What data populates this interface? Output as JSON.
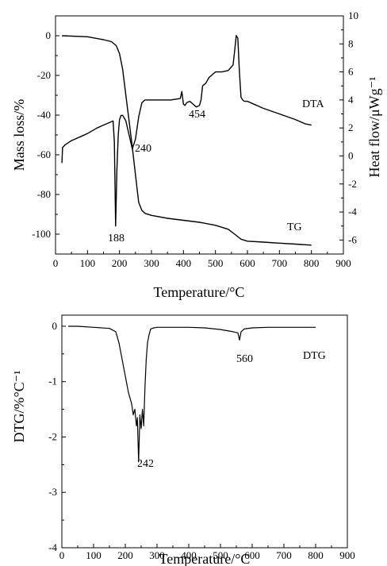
{
  "chart_data": [
    {
      "type": "line",
      "title": "",
      "xlabel": "Temperature/°C",
      "ylabel_left": "Mass loss/%",
      "ylabel_right": "Heat flow/μWg⁻¹",
      "xlim": [
        0,
        900
      ],
      "ylim_left": [
        -110,
        10
      ],
      "ylim_right": [
        -7,
        10
      ],
      "xticks": [
        "0",
        "100",
        "200",
        "300",
        "400",
        "500",
        "600",
        "700",
        "800",
        "900"
      ],
      "yticks_left": [
        "0",
        "-20",
        "-40",
        "-60",
        "-80",
        "-100"
      ],
      "yticks_right": [
        "10",
        "8",
        "6",
        "4",
        "2",
        "0",
        "-2",
        "-4",
        "-6"
      ],
      "grid": false,
      "series": [
        {
          "name": "TG",
          "axis": "left",
          "x": [
            20,
            100,
            150,
            175,
            190,
            200,
            210,
            220,
            230,
            240,
            250,
            260,
            270,
            280,
            300,
            350,
            400,
            450,
            500,
            540,
            560,
            580,
            600,
            650,
            700,
            750,
            800
          ],
          "y": [
            0,
            -0.5,
            -2,
            -3,
            -5,
            -9,
            -17,
            -30,
            -43,
            -56,
            -70,
            -84,
            -88,
            -89.5,
            -90.5,
            -92,
            -93,
            -94,
            -95.5,
            -97.5,
            -100,
            -102.5,
            -103.5,
            -104,
            -104.5,
            -105,
            -105.5
          ]
        },
        {
          "name": "DTA",
          "axis": "right",
          "x": [
            20,
            22,
            30,
            50,
            80,
            100,
            130,
            150,
            170,
            180,
            184,
            188,
            192,
            196,
            200,
            205,
            210,
            220,
            230,
            240,
            250,
            260,
            270,
            280,
            300,
            330,
            360,
            390,
            395,
            400,
            405,
            410,
            420,
            430,
            440,
            450,
            455,
            460,
            470,
            480,
            500,
            520,
            540,
            555,
            560,
            565,
            570,
            575,
            580,
            585,
            590,
            600,
            620,
            650,
            700,
            750,
            780,
            800
          ],
          "y": [
            -0.5,
            0.6,
            0.8,
            1.1,
            1.4,
            1.6,
            2.0,
            2.2,
            2.4,
            2.5,
            1.0,
            -5.0,
            -1.0,
            1.5,
            2.6,
            2.9,
            2.9,
            2.5,
            1.5,
            0.5,
            1.2,
            2.8,
            3.8,
            4.0,
            4.0,
            4.0,
            4.0,
            4.1,
            4.6,
            3.7,
            3.6,
            3.8,
            3.9,
            3.7,
            3.5,
            3.6,
            4.0,
            5.0,
            5.2,
            5.6,
            6.0,
            6.0,
            6.1,
            6.5,
            7.5,
            8.6,
            8.4,
            6.0,
            4.2,
            4.0,
            3.9,
            3.9,
            3.7,
            3.4,
            3.0,
            2.6,
            2.3,
            2.2
          ]
        }
      ],
      "annotations": [
        "188",
        "240",
        "454",
        "DTA",
        "TG"
      ]
    },
    {
      "type": "line",
      "title": "",
      "xlabel": "Temperature/°C",
      "ylabel": "DTG/%°C⁻¹",
      "xlim": [
        0,
        900
      ],
      "ylim": [
        -4,
        0.2
      ],
      "xticks": [
        "0",
        "100",
        "200",
        "300",
        "400",
        "500",
        "600",
        "700",
        "800",
        "900"
      ],
      "yticks": [
        "0",
        "-1",
        "-2",
        "-3",
        "-4"
      ],
      "grid": false,
      "series": [
        {
          "name": "DTG",
          "x": [
            20,
            50,
            100,
            150,
            170,
            180,
            190,
            200,
            210,
            220,
            225,
            230,
            235,
            238,
            242,
            246,
            250,
            254,
            258,
            262,
            266,
            270,
            275,
            280,
            290,
            300,
            350,
            400,
            450,
            500,
            540,
            555,
            560,
            565,
            575,
            600,
            650,
            700,
            750,
            800
          ],
          "y": [
            0,
            0,
            -0.02,
            -0.04,
            -0.1,
            -0.3,
            -0.6,
            -0.9,
            -1.2,
            -1.4,
            -1.6,
            -1.5,
            -1.8,
            -1.65,
            -2.45,
            -1.6,
            -1.85,
            -1.5,
            -1.8,
            -1.1,
            -0.6,
            -0.3,
            -0.15,
            -0.05,
            -0.03,
            -0.02,
            -0.02,
            -0.02,
            -0.03,
            -0.06,
            -0.1,
            -0.12,
            -0.25,
            -0.1,
            -0.05,
            -0.03,
            -0.02,
            -0.02,
            -0.02,
            -0.02
          ]
        }
      ],
      "annotations": [
        "242",
        "560",
        "DTG"
      ]
    }
  ]
}
